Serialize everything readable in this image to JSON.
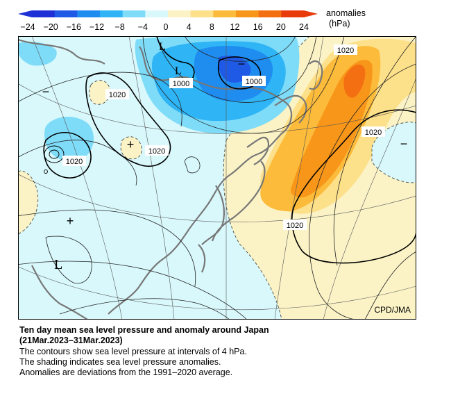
{
  "colorbar": {
    "unit_label_1": "anomalies",
    "unit_label_2": "(hPa)",
    "ticks": [
      "−24",
      "−20",
      "−16",
      "−12",
      "−8",
      "−4",
      "0",
      "4",
      "8",
      "12",
      "16",
      "20",
      "24"
    ],
    "colors": {
      "neg_24": "#1e2fd6",
      "neg_20": "#1f5ae6",
      "neg_16": "#1f8cf0",
      "neg_12": "#2fb4f5",
      "neg_8": "#7fdcf8",
      "neg_4": "#d9f8fb",
      "pos_0": "#fbf3c6",
      "pos_4": "#fde08a",
      "pos_8": "#fcbb3a",
      "pos_12": "#f8961a",
      "pos_16": "#f46f12",
      "pos_20": "#e83a0a"
    }
  },
  "map": {
    "credit": "CPD/JMA",
    "contour_labels": [
      "1020",
      "1000",
      "1000",
      "1020",
      "1020",
      "1020",
      "1020",
      "1020"
    ],
    "symbols": {
      "low": "L",
      "minus": "−",
      "plus": "+"
    }
  },
  "caption": {
    "title": "Ten day mean sea level pressure and anomaly around Japan",
    "period": "(21Mar.2023–31Mar.2023)",
    "line1": "The contours show sea level pressure at intervals of 4 hPa.",
    "line2": "The shading indicates sea level pressure anomalies.",
    "line3": "Anomalies are deviations from the 1991–2020 average."
  }
}
